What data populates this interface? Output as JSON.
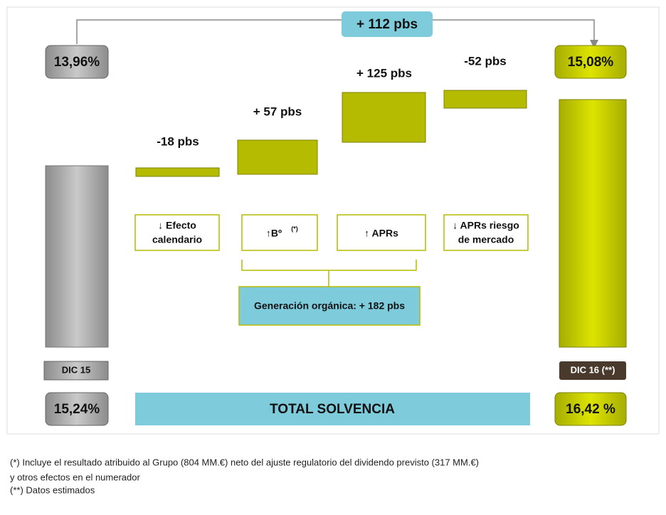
{
  "header": {
    "total_change": "+ 112 pbs"
  },
  "start": {
    "value_label": "13,96%",
    "period": "DIC 15",
    "total": "15,24%"
  },
  "end": {
    "value_label": "15,08%",
    "period": "DIC 16 (**)",
    "total": "16,42 %"
  },
  "steps": [
    {
      "change": "-18 pbs",
      "label_lines": [
        "↓ Efecto",
        "calendario"
      ]
    },
    {
      "change": "+ 57 pbs",
      "label_main": "↑Bº",
      "label_note": "(*)"
    },
    {
      "change": "+ 125 pbs",
      "label_lines": [
        "↑ APRs"
      ]
    },
    {
      "change": "-52 pbs",
      "label_lines": [
        "↓ APRs riesgo",
        "de mercado"
      ]
    }
  ],
  "organic": "Generación orgánica: + 182 pbs",
  "total_label": "TOTAL SOLVENCIA",
  "footnotes": [
    "(*) Incluye  el resultado atribuido al  Grupo  (804 MM.€) neto del ajuste  regulatorio del dividendo previsto  (317 MM.€)",
    "y otros efectos en el numerador",
    "(**) Datos estimados"
  ]
}
